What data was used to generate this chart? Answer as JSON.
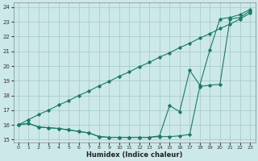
{
  "xlabel": "Humidex (Indice chaleur)",
  "bg_color": "#cce8e8",
  "grid_color": "#aacccc",
  "line_color": "#1a7a65",
  "xlim": [
    -0.5,
    23.5
  ],
  "ylim": [
    14.8,
    24.3
  ],
  "xticks": [
    0,
    1,
    2,
    3,
    4,
    5,
    6,
    7,
    8,
    9,
    10,
    11,
    12,
    13,
    14,
    15,
    16,
    17,
    18,
    19,
    20,
    21,
    22,
    23
  ],
  "yticks": [
    15,
    16,
    17,
    18,
    19,
    20,
    21,
    22,
    23,
    24
  ],
  "line1_x": [
    0,
    1,
    2,
    3,
    4,
    5,
    6,
    7,
    8,
    9,
    10,
    11,
    12,
    13,
    14,
    15,
    16,
    17,
    18,
    19,
    20,
    21,
    22,
    23
  ],
  "line1_y": [
    16.0,
    16.35,
    16.7,
    17.0,
    17.35,
    17.65,
    18.0,
    18.3,
    18.65,
    18.95,
    19.3,
    19.6,
    19.95,
    20.25,
    20.6,
    20.9,
    21.25,
    21.55,
    21.9,
    22.2,
    22.55,
    22.85,
    23.2,
    23.6
  ],
  "line2_x": [
    0,
    1,
    2,
    3,
    4,
    5,
    6,
    7,
    8,
    9,
    10,
    11,
    12,
    13,
    14,
    15,
    16,
    17,
    18,
    19,
    20,
    21,
    22,
    23
  ],
  "line2_y": [
    16.0,
    16.1,
    15.85,
    15.8,
    15.75,
    15.65,
    15.55,
    15.45,
    15.2,
    15.15,
    15.15,
    15.15,
    15.15,
    15.15,
    15.25,
    17.3,
    16.9,
    19.7,
    18.7,
    21.1,
    23.2,
    23.3,
    23.5,
    23.85
  ],
  "line3_x": [
    0,
    1,
    2,
    3,
    4,
    5,
    6,
    7,
    8,
    9,
    10,
    11,
    12,
    13,
    14,
    15,
    16,
    17,
    18,
    19,
    20,
    21,
    22,
    23
  ],
  "line3_y": [
    16.0,
    16.1,
    15.85,
    15.8,
    15.75,
    15.65,
    15.55,
    15.45,
    15.2,
    15.15,
    15.15,
    15.15,
    15.15,
    15.15,
    15.2,
    15.2,
    15.25,
    15.35,
    18.6,
    18.7,
    18.75,
    23.2,
    23.3,
    23.75
  ]
}
